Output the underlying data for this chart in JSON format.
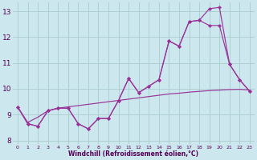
{
  "xlabel": "Windchill (Refroidissement éolien,°C)",
  "bg_color": "#cce8ee",
  "grid_color": "#aacccc",
  "line_color": "#993399",
  "xlim": [
    -0.5,
    23.5
  ],
  "ylim": [
    7.85,
    13.35
  ],
  "xticks": [
    0,
    1,
    2,
    3,
    4,
    5,
    6,
    7,
    8,
    9,
    10,
    11,
    12,
    13,
    14,
    15,
    16,
    17,
    18,
    19,
    20,
    21,
    22,
    23
  ],
  "yticks": [
    8,
    9,
    10,
    11,
    12,
    13
  ],
  "line1_x": [
    0,
    1,
    2,
    3,
    4,
    5,
    6,
    7,
    8,
    9,
    10,
    11,
    12,
    13,
    14,
    15,
    16,
    17,
    18,
    19,
    20,
    21,
    22,
    23
  ],
  "line1_y": [
    9.3,
    8.65,
    8.55,
    9.15,
    9.25,
    9.25,
    8.65,
    8.45,
    8.85,
    8.85,
    9.55,
    10.4,
    9.85,
    10.1,
    10.35,
    11.85,
    11.65,
    12.6,
    12.65,
    13.1,
    13.15,
    10.95,
    10.35,
    9.9
  ],
  "line2_x": [
    0,
    1,
    2,
    3,
    4,
    5,
    6,
    7,
    8,
    9,
    10,
    11,
    12,
    13,
    14,
    15,
    16,
    17,
    18,
    19,
    20,
    21,
    22,
    23
  ],
  "line2_y": [
    9.3,
    8.65,
    8.55,
    9.15,
    9.25,
    9.25,
    8.65,
    8.45,
    8.85,
    8.85,
    9.55,
    10.4,
    9.85,
    10.1,
    10.35,
    11.85,
    11.65,
    12.6,
    12.65,
    12.45,
    12.45,
    10.95,
    10.35,
    9.9
  ],
  "line3_x": [
    0,
    1,
    2,
    3,
    4,
    5,
    6,
    7,
    8,
    9,
    10,
    11,
    12,
    13,
    14,
    15,
    16,
    17,
    18,
    19,
    20,
    21,
    22,
    23
  ],
  "line3_y": [
    9.3,
    8.7,
    8.9,
    9.15,
    9.25,
    9.3,
    9.35,
    9.4,
    9.45,
    9.5,
    9.55,
    9.6,
    9.65,
    9.7,
    9.75,
    9.8,
    9.83,
    9.87,
    9.9,
    9.93,
    9.95,
    9.97,
    9.98,
    9.95
  ]
}
